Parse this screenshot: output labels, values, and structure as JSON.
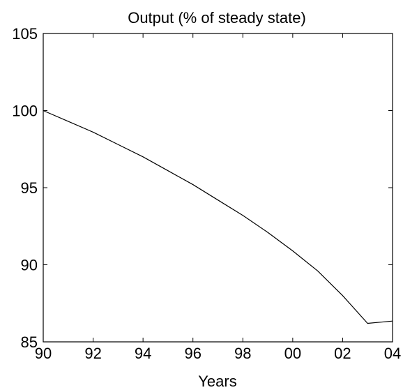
{
  "chart_data": {
    "type": "line",
    "title": "Output (% of steady state)",
    "xlabel": "Years",
    "ylabel": "",
    "xlim": [
      1990,
      2004
    ],
    "ylim": [
      85,
      105
    ],
    "x_ticks": [
      1990,
      1992,
      1994,
      1996,
      1998,
      2000,
      2002,
      2004
    ],
    "x_tick_labels": [
      "90",
      "92",
      "94",
      "96",
      "98",
      "00",
      "02",
      "04"
    ],
    "y_ticks": [
      85,
      90,
      95,
      100,
      105
    ],
    "y_tick_labels": [
      "85",
      "90",
      "95",
      "100",
      "105"
    ],
    "grid": false,
    "line_color": "#000000",
    "series": [
      {
        "x": [
          1990,
          1991,
          1992,
          1993,
          1994,
          1995,
          1996,
          1997,
          1998,
          1999,
          2000,
          2001,
          2002,
          2003,
          2004
        ],
        "values": [
          100,
          99.3,
          98.6,
          97.8,
          97.0,
          96.1,
          95.2,
          94.2,
          93.2,
          92.1,
          90.9,
          89.6,
          88.0,
          86.2,
          86.35
        ]
      }
    ]
  }
}
